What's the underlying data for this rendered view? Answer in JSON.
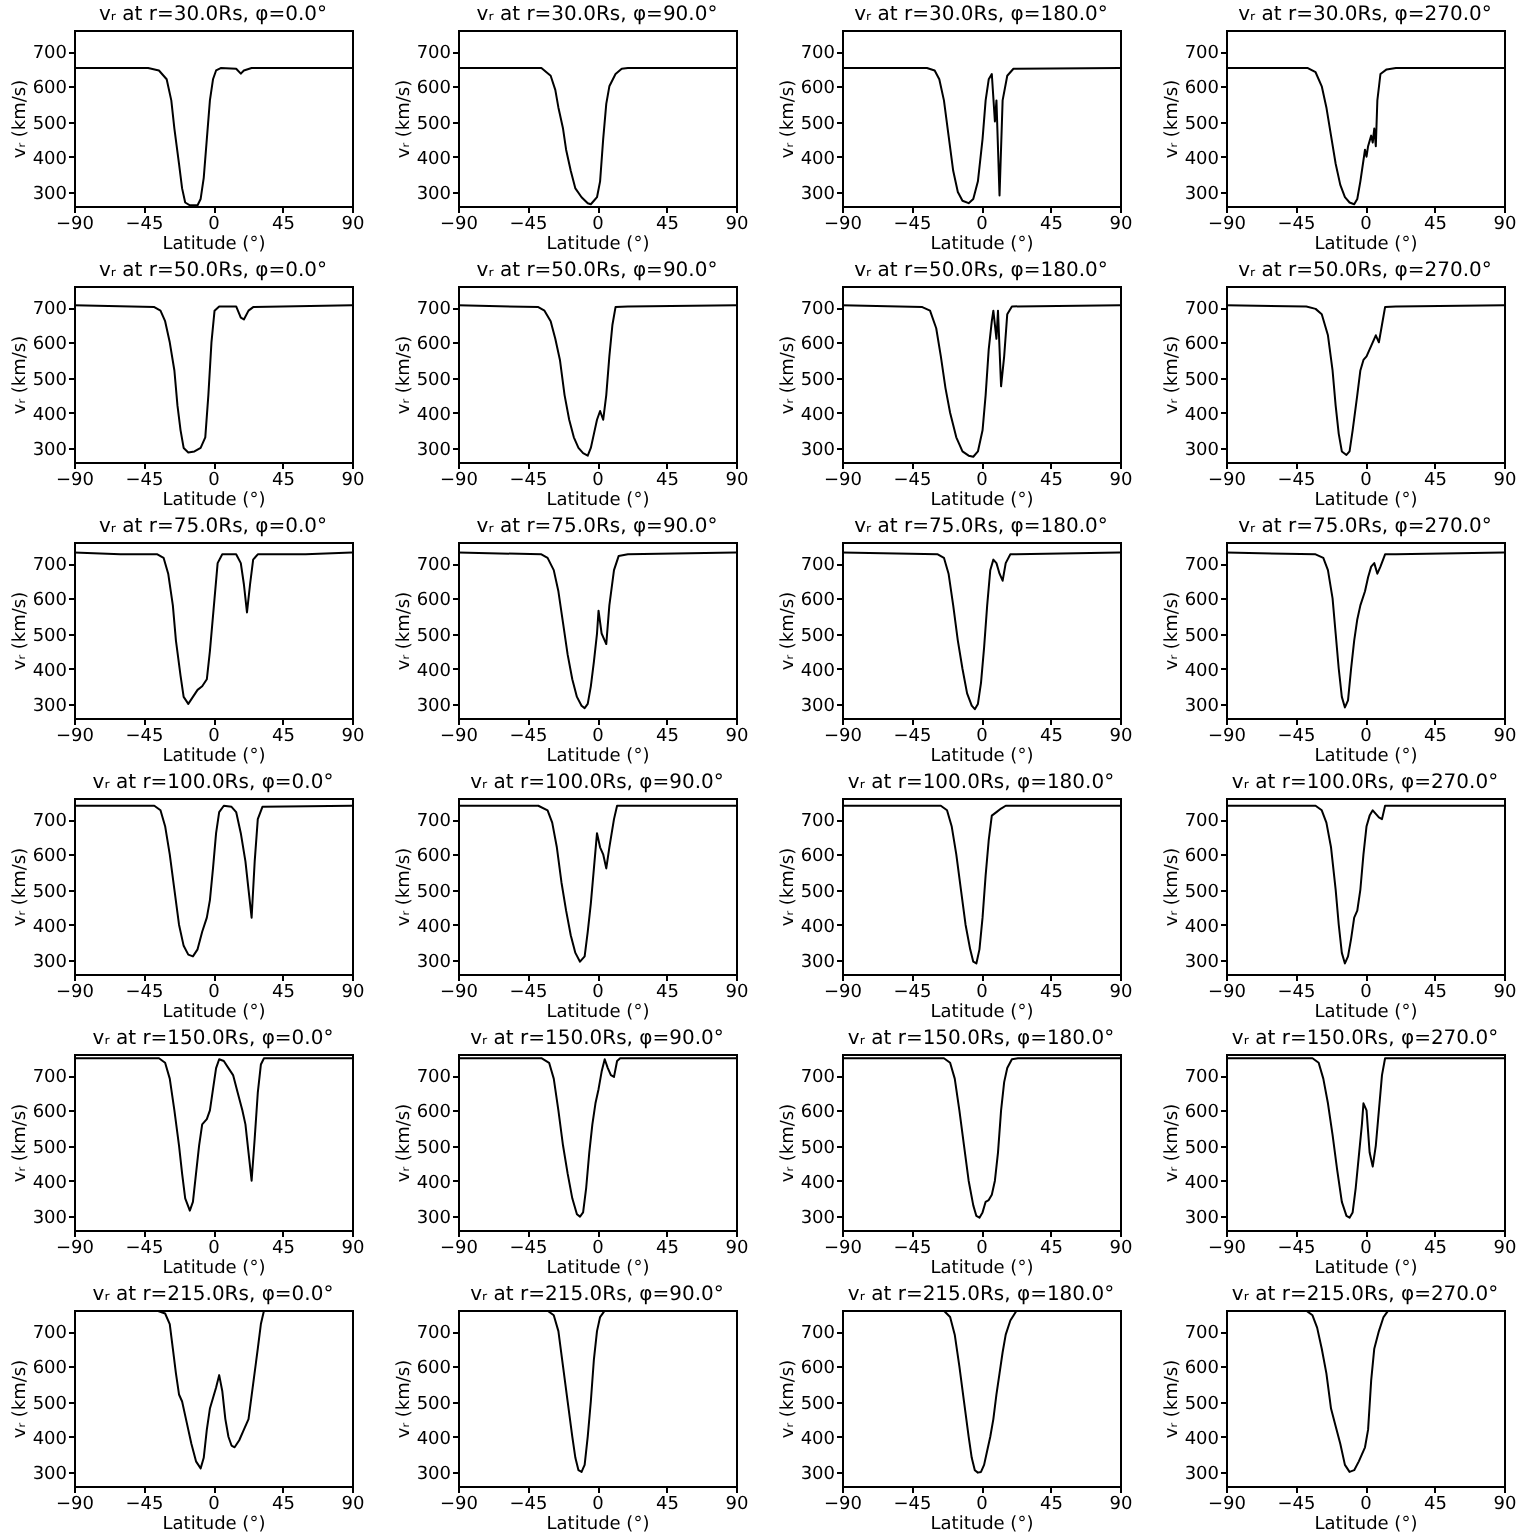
{
  "chart_data": [
    {
      "type": "line",
      "title": "vᵣ at r=30.0Rs, φ=0.0°",
      "xlabel": "Latitude (°)",
      "ylabel": "vᵣ (km/s)",
      "color": "#000000",
      "xlim": [
        -90,
        90
      ],
      "ylim": [
        260,
        760
      ],
      "xticks": [
        -90,
        -45,
        0,
        45,
        90
      ],
      "yticks": [
        300,
        400,
        500,
        600,
        700
      ],
      "grid": false,
      "x": [
        -90,
        -42,
        -35,
        -30,
        -27,
        -25,
        -22,
        -20,
        -18,
        -15,
        -10,
        -8,
        -6,
        -4,
        -2,
        0,
        2,
        5,
        15,
        18,
        20,
        25,
        90
      ],
      "values": [
        652,
        652,
        645,
        620,
        560,
        480,
        380,
        310,
        270,
        262,
        262,
        280,
        340,
        450,
        560,
        620,
        645,
        652,
        650,
        636,
        645,
        652,
        652
      ]
    },
    {
      "type": "line",
      "title": "vᵣ at r=30.0Rs, φ=90.0°",
      "xlabel": "Latitude (°)",
      "ylabel": "vᵣ (km/s)",
      "color": "#000000",
      "xlim": [
        -90,
        90
      ],
      "ylim": [
        260,
        760
      ],
      "xticks": [
        -90,
        -45,
        0,
        45,
        90
      ],
      "yticks": [
        300,
        400,
        500,
        600,
        700
      ],
      "grid": false,
      "x": [
        -90,
        -36,
        -30,
        -27,
        -25,
        -22,
        -20,
        -17,
        -14,
        -10,
        -6,
        -4,
        -2,
        0,
        2,
        4,
        6,
        8,
        12,
        16,
        20,
        90
      ],
      "values": [
        652,
        652,
        630,
        590,
        540,
        480,
        420,
        360,
        310,
        285,
        268,
        265,
        275,
        285,
        330,
        450,
        550,
        600,
        635,
        650,
        652,
        652
      ]
    },
    {
      "type": "line",
      "title": "vᵣ at r=30.0Rs, φ=180.0°",
      "xlabel": "Latitude (°)",
      "ylabel": "vᵣ (km/s)",
      "color": "#000000",
      "xlim": [
        -90,
        90
      ],
      "ylim": [
        260,
        760
      ],
      "xticks": [
        -90,
        -45,
        0,
        45,
        90
      ],
      "yticks": [
        300,
        400,
        500,
        600,
        700
      ],
      "grid": false,
      "x": [
        -90,
        -35,
        -30,
        -27,
        -24,
        -21,
        -18,
        -15,
        -12,
        -8,
        -5,
        -2,
        1,
        3,
        5,
        7,
        9,
        10,
        12,
        14,
        17,
        21,
        90
      ],
      "values": [
        652,
        652,
        645,
        620,
        560,
        460,
        360,
        300,
        275,
        268,
        280,
        330,
        450,
        560,
        620,
        635,
        500,
        560,
        290,
        560,
        630,
        650,
        652
      ]
    },
    {
      "type": "line",
      "title": "vᵣ at r=30.0Rs, φ=270.0°",
      "xlabel": "Latitude (°)",
      "ylabel": "vᵣ (km/s)",
      "color": "#000000",
      "xlim": [
        -90,
        90
      ],
      "ylim": [
        260,
        760
      ],
      "xticks": [
        -90,
        -45,
        0,
        45,
        90
      ],
      "yticks": [
        300,
        400,
        500,
        600,
        700
      ],
      "grid": false,
      "x": [
        -90,
        -37,
        -32,
        -28,
        -25,
        -22,
        -19,
        -16,
        -13,
        -10,
        -7,
        -5,
        -3,
        -1,
        0,
        1,
        2,
        4,
        5,
        6,
        7,
        8,
        10,
        14,
        20,
        90
      ],
      "values": [
        652,
        652,
        640,
        600,
        540,
        460,
        380,
        320,
        285,
        270,
        265,
        280,
        330,
        390,
        420,
        400,
        430,
        460,
        440,
        480,
        430,
        560,
        635,
        648,
        652,
        652
      ]
    },
    {
      "type": "line",
      "title": "vᵣ at r=50.0Rs, φ=0.0°",
      "xlabel": "Latitude (°)",
      "ylabel": "vᵣ (km/s)",
      "color": "#000000",
      "xlim": [
        -90,
        90
      ],
      "ylim": [
        260,
        760
      ],
      "xticks": [
        -90,
        -45,
        0,
        45,
        90
      ],
      "yticks": [
        300,
        400,
        500,
        600,
        700
      ],
      "grid": false,
      "x": [
        -90,
        -38,
        -34,
        -31,
        -28,
        -25,
        -23,
        -21,
        -19,
        -16,
        -12,
        -8,
        -5,
        -3,
        -1,
        1,
        4,
        15,
        18,
        20,
        23,
        26,
        90
      ],
      "values": [
        705,
        700,
        690,
        660,
        600,
        520,
        420,
        350,
        300,
        287,
        290,
        300,
        330,
        450,
        600,
        690,
        702,
        702,
        670,
        665,
        690,
        700,
        705
      ]
    },
    {
      "type": "line",
      "title": "vᵣ at r=50.0Rs, φ=90.0°",
      "xlabel": "Latitude (°)",
      "ylabel": "vᵣ (km/s)",
      "color": "#000000",
      "xlim": [
        -90,
        90
      ],
      "ylim": [
        260,
        760
      ],
      "xticks": [
        -90,
        -45,
        0,
        45,
        90
      ],
      "yticks": [
        300,
        400,
        500,
        600,
        700
      ],
      "grid": false,
      "x": [
        -90,
        -38,
        -34,
        -30,
        -27,
        -24,
        -21,
        -18,
        -15,
        -12,
        -9,
        -6,
        -4,
        -2,
        0,
        2,
        4,
        6,
        8,
        10,
        12,
        20,
        90
      ],
      "values": [
        705,
        700,
        690,
        660,
        610,
        550,
        450,
        380,
        330,
        300,
        285,
        278,
        300,
        340,
        380,
        405,
        380,
        450,
        560,
        650,
        700,
        702,
        705
      ]
    },
    {
      "type": "line",
      "title": "vᵣ at r=50.0Rs, φ=180.0°",
      "xlabel": "Latitude (°)",
      "ylabel": "vᵣ (km/s)",
      "color": "#000000",
      "xlim": [
        -90,
        90
      ],
      "ylim": [
        260,
        760
      ],
      "xticks": [
        -90,
        -45,
        0,
        45,
        90
      ],
      "yticks": [
        300,
        400,
        500,
        600,
        700
      ],
      "grid": false,
      "x": [
        -90,
        -38,
        -33,
        -29,
        -26,
        -23,
        -20,
        -16,
        -12,
        -8,
        -5,
        -2,
        1,
        3,
        5,
        7,
        8,
        10,
        11,
        13,
        15,
        17,
        20,
        90
      ],
      "values": [
        705,
        700,
        690,
        640,
        560,
        470,
        400,
        330,
        290,
        278,
        275,
        290,
        350,
        450,
        580,
        660,
        690,
        610,
        690,
        475,
        560,
        680,
        702,
        705
      ]
    },
    {
      "type": "line",
      "title": "vᵣ at r=50.0Rs, φ=270.0°",
      "xlabel": "Latitude (°)",
      "ylabel": "vᵣ (km/s)",
      "color": "#000000",
      "xlim": [
        -90,
        90
      ],
      "ylim": [
        260,
        760
      ],
      "xticks": [
        -90,
        -45,
        0,
        45,
        90
      ],
      "yticks": [
        300,
        400,
        500,
        600,
        700
      ],
      "grid": false,
      "x": [
        -90,
        -38,
        -32,
        -28,
        -24,
        -21,
        -19,
        -17,
        -15,
        -12,
        -10,
        -8,
        -5,
        -3,
        -1,
        1,
        3,
        5,
        7,
        9,
        11,
        13,
        20,
        90
      ],
      "values": [
        705,
        702,
        695,
        680,
        620,
        520,
        420,
        340,
        290,
        280,
        290,
        350,
        450,
        520,
        550,
        560,
        580,
        600,
        620,
        600,
        650,
        700,
        702,
        705
      ]
    },
    {
      "type": "line",
      "title": "vᵣ at r=75.0Rs, φ=0.0°",
      "xlabel": "Latitude (°)",
      "ylabel": "vᵣ (km/s)",
      "color": "#000000",
      "xlim": [
        -90,
        90
      ],
      "ylim": [
        260,
        760
      ],
      "xticks": [
        -90,
        -45,
        0,
        45,
        90
      ],
      "yticks": [
        300,
        400,
        500,
        600,
        700
      ],
      "grid": false,
      "x": [
        -90,
        -60,
        -36,
        -32,
        -29,
        -26,
        -24,
        -21,
        -19,
        -16,
        -13,
        -10,
        -7,
        -4,
        -2,
        1,
        3,
        6,
        15,
        18,
        20,
        22,
        24,
        26,
        29,
        60,
        90
      ],
      "values": [
        730,
        725,
        725,
        715,
        670,
        580,
        480,
        380,
        320,
        300,
        320,
        340,
        350,
        370,
        450,
        600,
        700,
        725,
        725,
        700,
        640,
        560,
        640,
        710,
        725,
        725,
        730
      ]
    },
    {
      "type": "line",
      "title": "vᵣ at r=75.0Rs, φ=90.0°",
      "xlabel": "Latitude (°)",
      "ylabel": "vᵣ (km/s)",
      "color": "#000000",
      "xlim": [
        -90,
        90
      ],
      "ylim": [
        260,
        760
      ],
      "xticks": [
        -90,
        -45,
        0,
        45,
        90
      ],
      "yticks": [
        300,
        400,
        500,
        600,
        700
      ],
      "grid": false,
      "x": [
        -90,
        -36,
        -32,
        -28,
        -25,
        -22,
        -19,
        -16,
        -13,
        -10,
        -8,
        -6,
        -4,
        -2,
        0,
        1,
        3,
        5,
        6,
        8,
        11,
        14,
        20,
        90
      ],
      "values": [
        730,
        725,
        715,
        680,
        620,
        530,
        440,
        370,
        320,
        295,
        288,
        300,
        350,
        420,
        500,
        565,
        500,
        480,
        470,
        580,
        680,
        720,
        725,
        730
      ]
    },
    {
      "type": "line",
      "title": "vᵣ at r=75.0Rs, φ=180.0°",
      "xlabel": "Latitude (°)",
      "ylabel": "vᵣ (km/s)",
      "color": "#000000",
      "xlim": [
        -90,
        90
      ],
      "ylim": [
        260,
        760
      ],
      "xticks": [
        -90,
        -45,
        0,
        45,
        90
      ],
      "yticks": [
        300,
        400,
        500,
        600,
        700
      ],
      "grid": false,
      "x": [
        -90,
        -28,
        -24,
        -21,
        -18,
        -15,
        -12,
        -9,
        -6,
        -4,
        -2,
        0,
        2,
        4,
        6,
        8,
        10,
        12,
        14,
        16,
        19,
        90
      ],
      "values": [
        730,
        725,
        715,
        670,
        580,
        480,
        400,
        330,
        295,
        285,
        300,
        360,
        460,
        580,
        680,
        710,
        700,
        670,
        650,
        700,
        725,
        730
      ]
    },
    {
      "type": "line",
      "title": "vᵣ at r=75.0Rs, φ=270.0°",
      "xlabel": "Latitude (°)",
      "ylabel": "vᵣ (km/s)",
      "color": "#000000",
      "xlim": [
        -90,
        90
      ],
      "ylim": [
        260,
        760
      ],
      "xticks": [
        -90,
        -45,
        0,
        45,
        90
      ],
      "yticks": [
        300,
        400,
        500,
        600,
        700
      ],
      "grid": false,
      "x": [
        -90,
        -32,
        -27,
        -24,
        -21,
        -19,
        -17,
        -15,
        -13,
        -11,
        -9,
        -7,
        -5,
        -3,
        0,
        2,
        4,
        6,
        8,
        10,
        13,
        20,
        90
      ],
      "values": [
        730,
        725,
        715,
        680,
        600,
        500,
        400,
        320,
        290,
        310,
        400,
        480,
        540,
        580,
        620,
        660,
        690,
        700,
        670,
        690,
        725,
        725,
        730
      ]
    },
    {
      "type": "line",
      "title": "vᵣ at r=100.0Rs, φ=0.0°",
      "xlabel": "Latitude (°)",
      "ylabel": "vᵣ (km/s)",
      "color": "#000000",
      "xlim": [
        -90,
        90
      ],
      "ylim": [
        260,
        760
      ],
      "xticks": [
        -90,
        -45,
        0,
        45,
        90
      ],
      "yticks": [
        300,
        400,
        500,
        600,
        700
      ],
      "grid": false,
      "x": [
        -90,
        -38,
        -34,
        -31,
        -28,
        -25,
        -22,
        -19,
        -16,
        -13,
        -10,
        -7,
        -4,
        -2,
        0,
        2,
        4,
        7,
        12,
        15,
        18,
        21,
        23,
        25,
        27,
        29,
        32,
        90
      ],
      "values": [
        738,
        738,
        725,
        680,
        600,
        500,
        400,
        340,
        315,
        310,
        330,
        380,
        420,
        470,
        560,
        660,
        720,
        738,
        735,
        720,
        660,
        580,
        500,
        420,
        580,
        700,
        735,
        738
      ]
    },
    {
      "type": "line",
      "title": "vᵣ at r=100.0Rs, φ=90.0°",
      "xlabel": "Latitude (°)",
      "ylabel": "vᵣ (km/s)",
      "color": "#000000",
      "xlim": [
        -90,
        90
      ],
      "ylim": [
        260,
        760
      ],
      "xticks": [
        -90,
        -45,
        0,
        45,
        90
      ],
      "yticks": [
        300,
        400,
        500,
        600,
        700
      ],
      "grid": false,
      "x": [
        -90,
        -38,
        -32,
        -29,
        -26,
        -23,
        -20,
        -17,
        -14,
        -11,
        -8,
        -6,
        -4,
        -2,
        0,
        2,
        4,
        6,
        8,
        11,
        13,
        90
      ],
      "values": [
        738,
        738,
        725,
        690,
        620,
        520,
        440,
        370,
        320,
        295,
        310,
        380,
        460,
        560,
        660,
        620,
        600,
        560,
        620,
        700,
        738,
        738
      ]
    },
    {
      "type": "line",
      "title": "vᵣ at r=100.0Rs, φ=180.0°",
      "xlabel": "Latitude (°)",
      "ylabel": "vᵣ (km/s)",
      "color": "#000000",
      "xlim": [
        -90,
        90
      ],
      "ylim": [
        260,
        760
      ],
      "xticks": [
        -90,
        -45,
        0,
        45,
        90
      ],
      "yticks": [
        300,
        400,
        500,
        600,
        700
      ],
      "grid": false,
      "x": [
        -90,
        -26,
        -22,
        -19,
        -16,
        -13,
        -10,
        -7,
        -5,
        -3,
        -1,
        1,
        3,
        5,
        7,
        10,
        13,
        16,
        90
      ],
      "values": [
        738,
        738,
        725,
        680,
        600,
        500,
        400,
        330,
        295,
        290,
        330,
        420,
        540,
        640,
        710,
        720,
        730,
        738,
        738
      ]
    },
    {
      "type": "line",
      "title": "vᵣ at r=100.0Rs, φ=270.0°",
      "xlabel": "Latitude (°)",
      "ylabel": "vᵣ (km/s)",
      "color": "#000000",
      "xlim": [
        -90,
        90
      ],
      "ylim": [
        260,
        760
      ],
      "xticks": [
        -90,
        -45,
        0,
        45,
        90
      ],
      "yticks": [
        300,
        400,
        500,
        600,
        700
      ],
      "grid": false,
      "x": [
        -90,
        -32,
        -28,
        -25,
        -22,
        -19,
        -17,
        -15,
        -13,
        -11,
        -9,
        -7,
        -5,
        -3,
        -1,
        1,
        3,
        5,
        7,
        9,
        11,
        13,
        90
      ],
      "values": [
        738,
        738,
        725,
        690,
        620,
        500,
        400,
        320,
        290,
        310,
        360,
        420,
        440,
        500,
        600,
        680,
        710,
        725,
        715,
        705,
        700,
        738,
        738
      ]
    },
    {
      "type": "line",
      "title": "vᵣ at r=150.0Rs, φ=0.0°",
      "xlabel": "Latitude (°)",
      "ylabel": "vᵣ (km/s)",
      "color": "#000000",
      "xlim": [
        -90,
        90
      ],
      "ylim": [
        260,
        760
      ],
      "xticks": [
        -90,
        -45,
        0,
        45,
        90
      ],
      "yticks": [
        300,
        400,
        500,
        600,
        700
      ],
      "grid": false,
      "x": [
        -90,
        -35,
        -31,
        -28,
        -25,
        -22,
        -20,
        -18,
        -15,
        -13,
        -11,
        -9,
        -7,
        -4,
        -2,
        0,
        2,
        4,
        7,
        10,
        13,
        16,
        19,
        21,
        23,
        25,
        27,
        29,
        31,
        33,
        90
      ],
      "values": [
        748,
        748,
        735,
        690,
        600,
        500,
        420,
        350,
        315,
        340,
        420,
        500,
        560,
        575,
        600,
        660,
        720,
        745,
        740,
        720,
        700,
        650,
        600,
        560,
        480,
        400,
        520,
        650,
        730,
        748,
        748
      ]
    },
    {
      "type": "line",
      "title": "vᵣ at r=150.0Rs, φ=90.0°",
      "xlabel": "Latitude (°)",
      "ylabel": "vᵣ (km/s)",
      "color": "#000000",
      "xlim": [
        -90,
        90
      ],
      "ylim": [
        260,
        760
      ],
      "xticks": [
        -90,
        -45,
        0,
        45,
        90
      ],
      "yticks": [
        300,
        400,
        500,
        600,
        700
      ],
      "grid": false,
      "x": [
        -90,
        -36,
        -31,
        -28,
        -25,
        -22,
        -19,
        -16,
        -13,
        -11,
        -9,
        -7,
        -5,
        -3,
        -1,
        1,
        3,
        5,
        7,
        9,
        11,
        13,
        15,
        90
      ],
      "values": [
        748,
        748,
        735,
        690,
        600,
        500,
        420,
        350,
        305,
        298,
        310,
        380,
        480,
        560,
        620,
        660,
        710,
        745,
        720,
        700,
        695,
        740,
        748,
        748
      ]
    },
    {
      "type": "line",
      "title": "vᵣ at r=150.0Rs, φ=180.0°",
      "xlabel": "Latitude (°)",
      "ylabel": "vᵣ (km/s)",
      "color": "#000000",
      "xlim": [
        -90,
        90
      ],
      "ylim": [
        260,
        760
      ],
      "xticks": [
        -90,
        -45,
        0,
        45,
        90
      ],
      "yticks": [
        300,
        400,
        500,
        600,
        700
      ],
      "grid": false,
      "x": [
        -90,
        -24,
        -20,
        -17,
        -14,
        -11,
        -8,
        -5,
        -3,
        -1,
        1,
        3,
        5,
        7,
        9,
        11,
        13,
        15,
        17,
        20,
        24,
        90
      ],
      "values": [
        748,
        748,
        735,
        690,
        600,
        500,
        400,
        330,
        300,
        295,
        310,
        340,
        345,
        360,
        400,
        480,
        600,
        680,
        720,
        745,
        748,
        748
      ]
    },
    {
      "type": "line",
      "title": "vᵣ at r=150.0Rs, φ=270.0°",
      "xlabel": "Latitude (°)",
      "ylabel": "vᵣ (km/s)",
      "color": "#000000",
      "xlim": [
        -90,
        90
      ],
      "ylim": [
        260,
        760
      ],
      "xticks": [
        -90,
        -45,
        0,
        45,
        90
      ],
      "yticks": [
        300,
        400,
        500,
        600,
        700
      ],
      "grid": false,
      "x": [
        -90,
        -34,
        -30,
        -27,
        -24,
        -21,
        -18,
        -15,
        -12,
        -10,
        -8,
        -6,
        -4,
        -2,
        -1,
        1,
        3,
        5,
        7,
        9,
        11,
        13,
        90
      ],
      "values": [
        748,
        748,
        735,
        690,
        620,
        530,
        430,
        340,
        300,
        295,
        310,
        380,
        470,
        560,
        620,
        600,
        480,
        440,
        500,
        600,
        700,
        748,
        748
      ]
    },
    {
      "type": "line",
      "title": "vᵣ at r=215.0Rs, φ=0.0°",
      "xlabel": "Latitude (°)",
      "ylabel": "vᵣ (km/s)",
      "color": "#000000",
      "xlim": [
        -90,
        90
      ],
      "ylim": [
        260,
        760
      ],
      "xticks": [
        -90,
        -45,
        0,
        45,
        90
      ],
      "yticks": [
        300,
        400,
        500,
        600,
        700
      ],
      "grid": false,
      "x": [
        -90,
        -36,
        -31,
        -28,
        -26,
        -24,
        -22,
        -20,
        -17,
        -14,
        -11,
        -8,
        -6,
        -4,
        -2,
        0,
        2,
        4,
        6,
        8,
        10,
        12,
        14,
        17,
        20,
        23,
        26,
        29,
        31,
        33,
        90
      ],
      "values": [
        758,
        758,
        750,
        720,
        650,
        580,
        520,
        500,
        440,
        380,
        330,
        310,
        340,
        420,
        480,
        510,
        540,
        575,
        530,
        450,
        400,
        375,
        370,
        390,
        420,
        450,
        550,
        650,
        720,
        758,
        758
      ]
    },
    {
      "type": "line",
      "title": "vᵣ at r=215.0Rs, φ=90.0°",
      "xlabel": "Latitude (°)",
      "ylabel": "vᵣ (km/s)",
      "color": "#000000",
      "xlim": [
        -90,
        90
      ],
      "ylim": [
        260,
        760
      ],
      "xticks": [
        -90,
        -45,
        0,
        45,
        90
      ],
      "yticks": [
        300,
        400,
        500,
        600,
        700
      ],
      "grid": false,
      "x": [
        -90,
        -32,
        -28,
        -25,
        -22,
        -19,
        -16,
        -14,
        -12,
        -10,
        -8,
        -6,
        -4,
        -2,
        0,
        2,
        5,
        90
      ],
      "values": [
        758,
        758,
        745,
        700,
        600,
        500,
        400,
        340,
        305,
        300,
        320,
        400,
        500,
        620,
        700,
        740,
        758,
        758
      ]
    },
    {
      "type": "line",
      "title": "vᵣ at r=215.0Rs, φ=180.0°",
      "xlabel": "Latitude (°)",
      "ylabel": "vᵣ (km/s)",
      "color": "#000000",
      "xlim": [
        -90,
        90
      ],
      "ylim": [
        260,
        760
      ],
      "xticks": [
        -90,
        -45,
        0,
        45,
        90
      ],
      "yticks": [
        300,
        400,
        500,
        600,
        700
      ],
      "grid": false,
      "x": [
        -90,
        -24,
        -20,
        -17,
        -14,
        -11,
        -8,
        -6,
        -4,
        -2,
        0,
        2,
        4,
        6,
        8,
        10,
        12,
        14,
        16,
        19,
        23,
        90
      ],
      "values": [
        758,
        758,
        740,
        690,
        600,
        500,
        400,
        340,
        305,
        298,
        300,
        320,
        360,
        400,
        450,
        520,
        580,
        640,
        690,
        730,
        758,
        758
      ]
    },
    {
      "type": "line",
      "title": "vᵣ at r=215.0Rs, φ=270.0°",
      "xlabel": "Latitude (°)",
      "ylabel": "vᵣ (km/s)",
      "color": "#000000",
      "xlim": [
        -90,
        90
      ],
      "ylim": [
        260,
        760
      ],
      "xticks": [
        -90,
        -45,
        0,
        45,
        90
      ],
      "yticks": [
        300,
        400,
        500,
        600,
        700
      ],
      "grid": false,
      "x": [
        -90,
        -38,
        -34,
        -31,
        -28,
        -25,
        -22,
        -19,
        -16,
        -13,
        -10,
        -7,
        -4,
        -2,
        0,
        2,
        4,
        6,
        9,
        12,
        15,
        90
      ],
      "values": [
        758,
        758,
        745,
        710,
        650,
        580,
        480,
        430,
        380,
        320,
        300,
        305,
        330,
        350,
        370,
        420,
        560,
        650,
        700,
        740,
        758,
        758
      ]
    }
  ]
}
